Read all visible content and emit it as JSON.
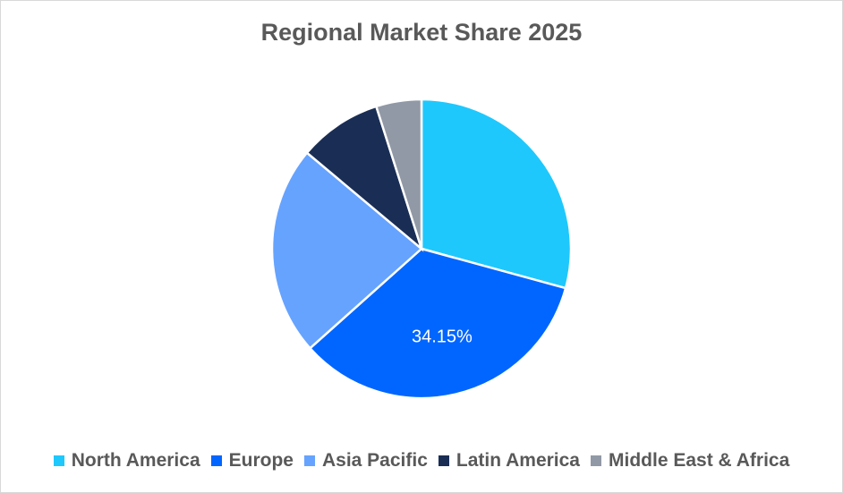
{
  "chart_data": {
    "type": "pie",
    "title": "Regional Market Share 2025",
    "categories": [
      "North America",
      "Europe",
      "Asia Pacific",
      "Latin America",
      "Middle East & Africa"
    ],
    "values": [
      29.25,
      34.15,
      22.7,
      9.0,
      4.9
    ],
    "colors": [
      "#1ec8fc",
      "#0066ff",
      "#66a3ff",
      "#1a2e55",
      "#9199a6"
    ],
    "data_labels": [
      null,
      "34.15%",
      null,
      null,
      null
    ],
    "legend_position": "bottom"
  }
}
